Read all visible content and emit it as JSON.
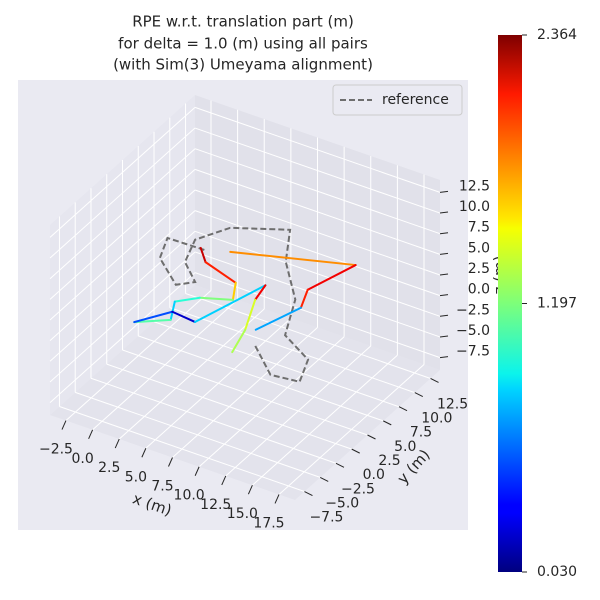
{
  "chart_data": {
    "type": "line3d",
    "title": [
      "RPE w.r.t. translation part (m)",
      "for delta = 1.0 (m) using all pairs",
      "(with Sim(3) Umeyama alignment)"
    ],
    "xlabel": "x (m)",
    "ylabel": "y (m)",
    "zlabel": "z (m)",
    "xlim": [
      -4,
      19
    ],
    "ylim": [
      -9,
      14
    ],
    "zlim": [
      -9,
      14
    ],
    "xticks": [
      {
        "value": -2.5,
        "label": "−2.5"
      },
      {
        "value": 0,
        "label": "0.0"
      },
      2.5,
      {
        "value": 5,
        "label": "5.0"
      },
      7.5,
      {
        "value": 10,
        "label": "10.0"
      },
      12.5,
      {
        "value": 15,
        "label": "15.0"
      },
      17.5
    ],
    "yticks": [
      {
        "value": -7.5,
        "label": "−7.5"
      },
      {
        "value": -5,
        "label": "−5.0"
      },
      {
        "value": -2.5,
        "label": "−2.5"
      },
      {
        "value": 0,
        "label": "0.0"
      },
      2.5,
      {
        "value": 5,
        "label": "5.0"
      },
      7.5,
      {
        "value": 10,
        "label": "10.0"
      },
      12.5
    ],
    "zticks": [
      {
        "value": -7.5,
        "label": "−7.5"
      },
      {
        "value": -5,
        "label": "−5.0"
      },
      {
        "value": -2.5,
        "label": "−2.5"
      },
      {
        "value": 0,
        "label": "0.0"
      },
      2.5,
      {
        "value": 5,
        "label": "5.0"
      },
      7.5,
      {
        "value": 10,
        "label": "10.0"
      },
      12.5
    ],
    "grid": true,
    "legend": "upper right",
    "reference": {
      "name": "reference",
      "color": "#6e6e6e",
      "x": [
        -0.4,
        -3.8,
        -2.8,
        0.3,
        1.4,
        -0.8,
        -1.8,
        2.8,
        7.0,
        6.0,
        9.5,
        11.5,
        14.9,
        16.0,
        13.5,
        10.2
      ],
      "y": [
        9.4,
        9.3,
        6.4,
        3.7,
        4.9,
        7.0,
        10.3,
        8.1,
        10.5,
        11.5,
        7.1,
        2.1,
        0.0,
        -3.2,
        -3.6,
        -0.5
      ],
      "z": [
        0,
        0,
        0,
        0,
        0,
        0,
        0,
        5,
        5,
        0,
        0,
        0,
        0,
        0,
        0,
        0
      ]
    },
    "colorbar": {
      "colormap": "jet",
      "lim": [
        0.03,
        2.364
      ],
      "ticks": [
        {
          "value": 0.03,
          "label": "0.030"
        },
        1.197,
        2.364
      ]
    },
    "segments": [
      {
        "x": [
          -0.8,
          0.6
        ],
        "y": [
          9.5,
          7.9
        ],
        "z": [
          0,
          0
        ],
        "error": 2.2
      },
      {
        "x": [
          0.6,
          4.2
        ],
        "y": [
          7.9,
          6.6
        ],
        "z": [
          0,
          0
        ],
        "error": 2.0
      },
      {
        "x": [
          4.2,
          5.3
        ],
        "y": [
          6.6,
          4.3
        ],
        "z": [
          0,
          0
        ],
        "error": 1.6
      },
      {
        "x": [
          5.3,
          2.9
        ],
        "y": [
          4.3,
          3.1
        ],
        "z": [
          0,
          0
        ],
        "error": 1.2
      },
      {
        "x": [
          2.9,
          1.5
        ],
        "y": [
          3.1,
          1.5
        ],
        "z": [
          0,
          0
        ],
        "error": 1.0
      },
      {
        "x": [
          1.5,
          2.6
        ],
        "y": [
          1.5,
          -1.0
        ],
        "z": [
          0,
          0
        ],
        "error": 0.8
      },
      {
        "x": [
          2.6,
          0.3
        ],
        "y": [
          -1.0,
          -2.9
        ],
        "z": [
          0,
          0
        ],
        "error": 1.1
      },
      {
        "x": [
          0.3,
          2.1
        ],
        "y": [
          -2.9,
          0.1
        ],
        "z": [
          0,
          0
        ],
        "error": 0.5
      },
      {
        "x": [
          2.1,
          4.4
        ],
        "y": [
          0.1,
          -0.2
        ],
        "z": [
          0,
          0
        ],
        "error": 0.2
      },
      {
        "x": [
          4.4,
          6.4
        ],
        "y": [
          -0.2,
          7.6
        ],
        "z": [
          0,
          0
        ],
        "error": 0.8
      },
      {
        "x": [
          6.4,
          6.8
        ],
        "y": [
          7.6,
          5.3
        ],
        "z": [
          0,
          0
        ],
        "error": 2.1
      },
      {
        "x": [
          6.8,
          8.4
        ],
        "y": [
          5.3,
          1.0
        ],
        "z": [
          0,
          0
        ],
        "error": 1.4
      },
      {
        "x": [
          8.4,
          9.2
        ],
        "y": [
          1.0,
          -2.4
        ],
        "z": [
          0,
          0
        ],
        "error": 1.3
      },
      {
        "x": [
          1.5,
          14.1
        ],
        "y": [
          10.3,
          8.9
        ],
        "z": [
          0,
          5
        ],
        "error": 1.75
      },
      {
        "x": [
          14.1,
          9.6
        ],
        "y": [
          8.9,
          8.9
        ],
        "z": [
          5,
          0
        ],
        "error": 2.1
      },
      {
        "x": [
          9.6,
          10.5
        ],
        "y": [
          8.9,
          6.3
        ],
        "z": [
          0,
          0
        ],
        "error": 2.0
      },
      {
        "x": [
          10.5,
          9.1
        ],
        "y": [
          6.3,
          1.5
        ],
        "z": [
          0,
          0
        ],
        "error": 0.7
      }
    ]
  }
}
